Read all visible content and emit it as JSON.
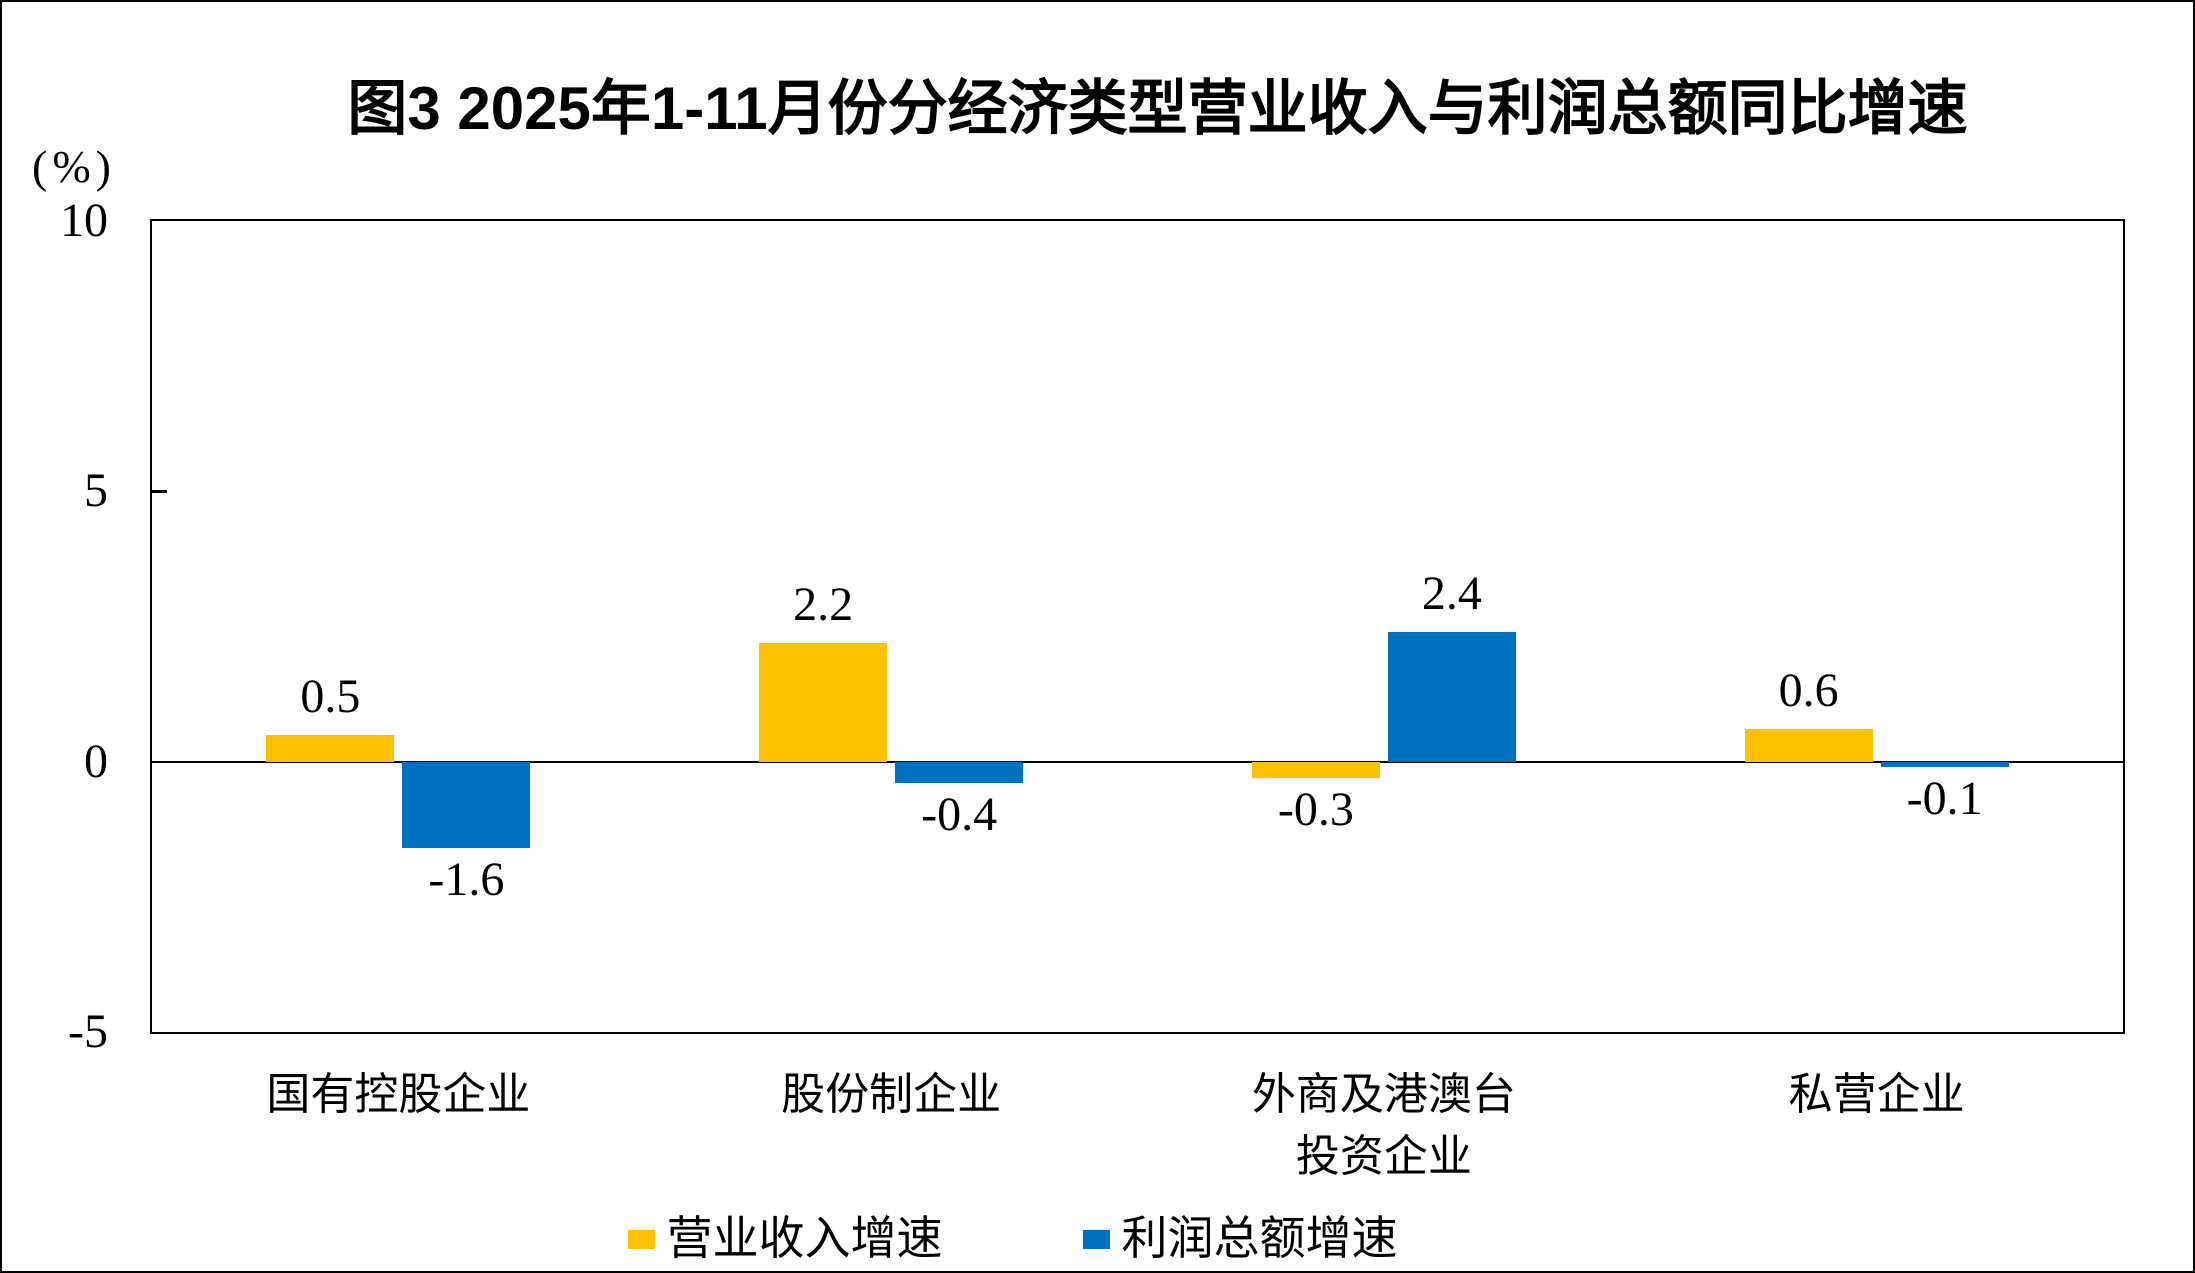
{
  "chart_data": {
    "type": "bar",
    "title": "图3 2025年1-11月份分经济类型营业收入与利润总额同比增速",
    "unit_label": "(%)",
    "categories": [
      "国有控股企业",
      "股份制企业",
      "外商及港澳台\n投资企业",
      "私营企业"
    ],
    "series": [
      {
        "key": "revenue-growth",
        "name": "营业收入增速",
        "color": "#FFC000",
        "values": [
          0.5,
          2.2,
          -0.3,
          0.6
        ]
      },
      {
        "key": "profit-growth",
        "name": "利润总额增速",
        "color": "#0070C0",
        "values": [
          -1.6,
          -0.4,
          2.4,
          -0.1
        ]
      }
    ],
    "data_labels": [
      [
        "0.5",
        "2.2",
        "-0.3",
        "0.6"
      ],
      [
        "-1.6",
        "-0.4",
        "2.4",
        "-0.1"
      ]
    ],
    "ylim": [
      -5,
      10
    ],
    "yticks": [
      10,
      5,
      0,
      -5
    ],
    "grid": "off",
    "legend_position": "bottom",
    "axis_color": "#000000",
    "background_color": "#FFFFFF"
  }
}
